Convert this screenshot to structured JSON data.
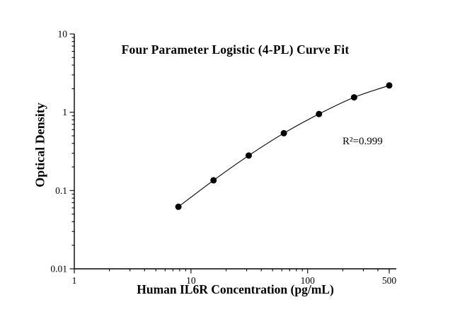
{
  "chart_data": {
    "type": "scatter",
    "title": "Four Parameter Logistic (4-PL) Curve Fit",
    "xlabel": "Human IL6R Concentration (pg/mL)",
    "ylabel": "Optical Density",
    "annotation": "R²=0.999",
    "x_scale": "log",
    "y_scale": "log",
    "xlim": [
      1,
      500
    ],
    "ylim": [
      0.01,
      10
    ],
    "x_ticks": [
      1,
      10,
      100,
      500
    ],
    "x_tick_labels": [
      "1",
      "10",
      "100",
      "500"
    ],
    "y_ticks": [
      0.01,
      0.1,
      1,
      10
    ],
    "y_tick_labels": [
      "0.01",
      "0.1",
      "1",
      "10"
    ],
    "grid": false,
    "legend": "none",
    "marker_color": "#000000",
    "line_color": "#000000",
    "background_color": "#ffffff",
    "points": [
      {
        "x": 7.8,
        "y": 0.062
      },
      {
        "x": 15.6,
        "y": 0.135
      },
      {
        "x": 31.25,
        "y": 0.28
      },
      {
        "x": 62.5,
        "y": 0.54
      },
      {
        "x": 125,
        "y": 0.95
      },
      {
        "x": 250,
        "y": 1.55
      },
      {
        "x": 500,
        "y": 2.2
      }
    ]
  }
}
